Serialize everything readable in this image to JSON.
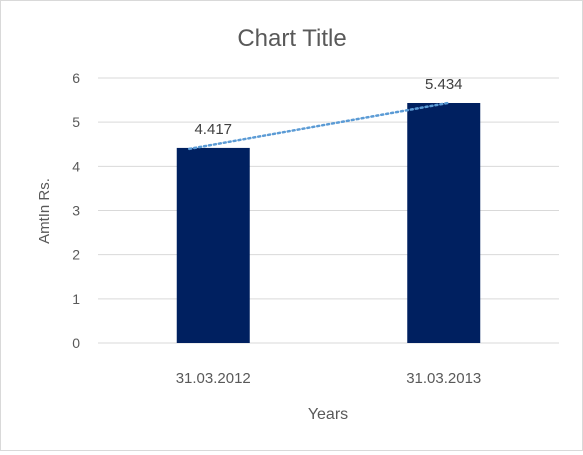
{
  "chart_data": {
    "type": "bar",
    "title": "Chart Title",
    "xlabel": "Years",
    "ylabel": "AmtIn Rs.",
    "categories": [
      "31.03.2012",
      "31.03.2013"
    ],
    "values": [
      4.417,
      5.434
    ],
    "data_labels": [
      "4.417",
      "5.434"
    ],
    "ylim": [
      0,
      6
    ],
    "yticks": [
      "0",
      "1",
      "2",
      "3",
      "4",
      "5",
      "6"
    ],
    "grid": true,
    "legend": "none",
    "trendline": {
      "type": "linear",
      "style": "dotted",
      "color": "#5b9bd5"
    },
    "bar_color": "#002060"
  }
}
